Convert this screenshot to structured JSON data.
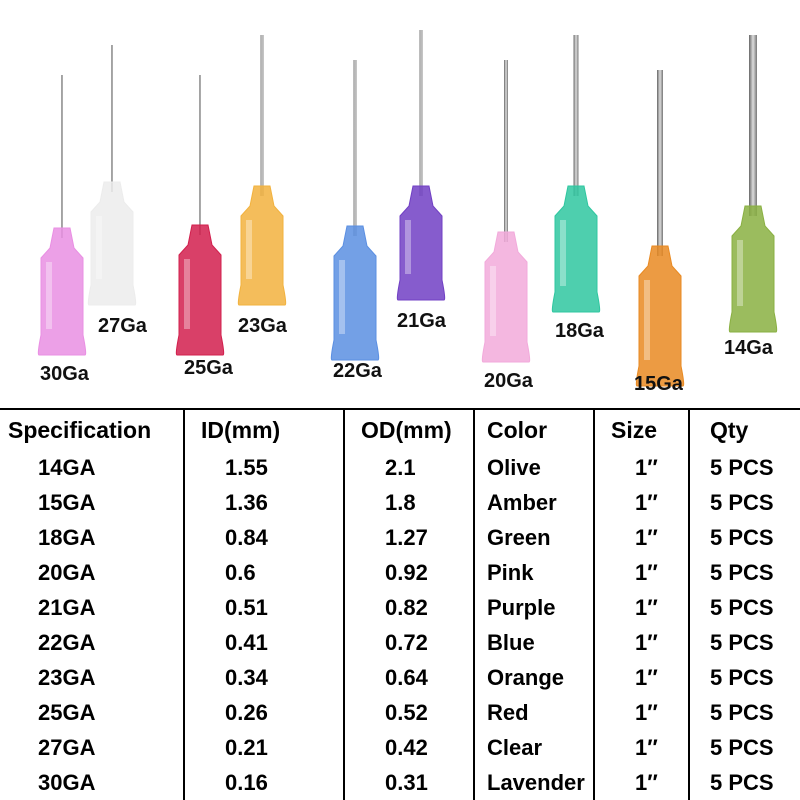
{
  "needle_labels": [
    "30Ga",
    "27Ga",
    "25Ga",
    "23Ga",
    "22Ga",
    "21Ga",
    "20Ga",
    "18Ga",
    "15Ga",
    "14Ga"
  ],
  "table": {
    "header": [
      "Specification",
      "ID(mm)",
      "OD(mm)",
      "Color",
      "Size",
      "Qty"
    ],
    "rows": [
      [
        "14GA",
        "1.55",
        "2.1",
        "Olive",
        "1″",
        "5 PCS"
      ],
      [
        "15GA",
        "1.36",
        "1.8",
        "Amber",
        "1″",
        "5 PCS"
      ],
      [
        "18GA",
        "0.84",
        "1.27",
        "Green",
        "1″",
        "5 PCS"
      ],
      [
        "20GA",
        "0.6",
        "0.92",
        "Pink",
        "1″",
        "5 PCS"
      ],
      [
        "21GA",
        "0.51",
        "0.82",
        "Purple",
        "1″",
        "5 PCS"
      ],
      [
        "22GA",
        "0.41",
        "0.72",
        "Blue",
        "1″",
        "5 PCS"
      ],
      [
        "23GA",
        "0.34",
        "0.64",
        "Orange",
        "1″",
        "5 PCS"
      ],
      [
        "25GA",
        "0.26",
        "0.52",
        "Red",
        "1″",
        "5 PCS"
      ],
      [
        "27GA",
        "0.21",
        "0.42",
        "Clear",
        "1″",
        "5 PCS"
      ],
      [
        "30GA",
        "0.16",
        "0.31",
        "Lavender",
        "1″",
        "5 PCS"
      ]
    ]
  }
}
